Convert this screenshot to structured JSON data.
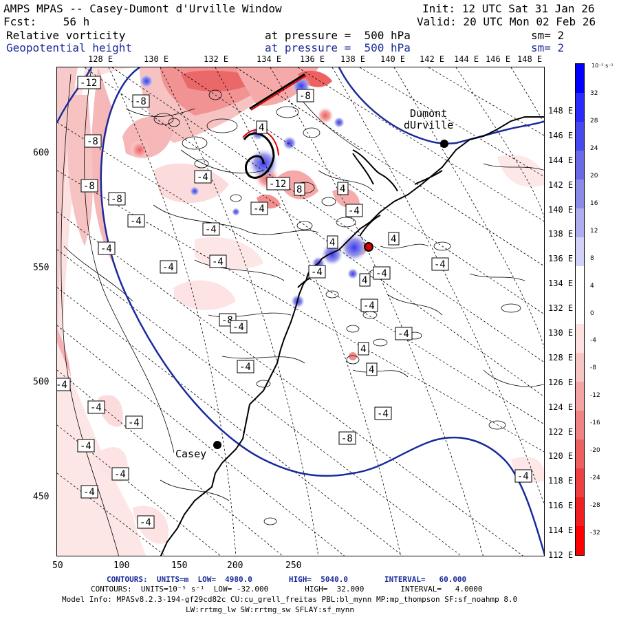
{
  "header": {
    "title": "AMPS MPAS -- Casey-Dumont d'Urville Window",
    "forecast": "Fcst:    56 h",
    "init": "Init: 12 UTC Sat 31 Jan 26",
    "valid": "Valid: 20 UTC Mon 02 Feb 26",
    "field1_name": "Relative vorticity",
    "field1_level": "at pressure =  500 hPa",
    "field1_sm": "sm= 2",
    "field2_name": "Geopotential height",
    "field2_level": "at pressure =  500 hPa",
    "field2_sm": "sm= 2"
  },
  "top_axis": [
    "128 E",
    "130 E",
    "132 E",
    "134 E",
    "136 E",
    "138 E",
    "140 E",
    "142 E",
    "144 E",
    "146 E",
    "148 E"
  ],
  "bottom_axis": [
    "50",
    "100",
    "150",
    "200",
    "250"
  ],
  "left_axis": [
    "600",
    "550",
    "500",
    "450"
  ],
  "right_axis": [
    "148 E",
    "146 E",
    "144 E",
    "142 E",
    "140 E",
    "138 E",
    "136 E",
    "134 E",
    "132 E",
    "130 E",
    "128 E",
    "126 E",
    "124 E",
    "122 E",
    "120 E",
    "118 E",
    "116 E",
    "114 E",
    "112 E"
  ],
  "stations": [
    {
      "name": "Dumont\ndUrville"
    },
    {
      "name": "Casey"
    }
  ],
  "contour_labels": [
    "-12",
    "-8",
    "-8",
    "-8",
    "-8",
    "-4",
    "-4",
    "-4",
    "-4",
    "-4",
    "-4",
    "-4",
    "-8",
    "-4",
    "-4",
    "-4",
    "-4",
    "-4",
    "-4",
    "-4",
    "-8",
    "-4",
    "-4",
    "-4",
    "-4",
    "-4",
    "4",
    "4",
    "4",
    "4",
    "4",
    "4",
    "-4",
    "-4",
    "-4",
    "-4",
    "8",
    "-4",
    "-8",
    "-12",
    "4"
  ],
  "colorbar": {
    "unit": "10⁻⁵ s⁻¹",
    "labels": [
      "32",
      "28",
      "24",
      "20",
      "16",
      "12",
      "8",
      "4",
      "0",
      "-4",
      "-8",
      "-12",
      "-16",
      "-20",
      "-24",
      "-28",
      "-32"
    ],
    "colors": [
      "#0000ff",
      "#2a2aff",
      "#4848f0",
      "#6a6ae8",
      "#8a8ae8",
      "#adadf0",
      "#d2d2f8",
      "#ffffff",
      "#ffffff",
      "#fde0e0",
      "#f8c4c4",
      "#f4a4a4",
      "#f08484",
      "#ee6060",
      "#ee4040",
      "#f02020",
      "#ff0000"
    ]
  },
  "footer": {
    "line1": "CONTOURS:  UNITS=m  LOW=  4980.0        HIGH=  5040.0        INTERVAL=   60.000",
    "line2": "CONTOURS:  UNITS=10⁻⁵ s⁻¹  LOW= -32.000        HIGH=  32.000        INTERVAL=   4.0000",
    "line3": "Model Info: MPASv8.2.3-194-gf29cd82c CU:cu_grell_freitas PBL:bl_mynn MP:mp_thompson SF:sf_noahmp 8.0",
    "line4": "LW:rrtmg_lw SW:rrtmg_sw SFLAY:sf_mynn"
  },
  "colors": {
    "height_contour": "#1a2a9a",
    "coast": "#000000"
  }
}
